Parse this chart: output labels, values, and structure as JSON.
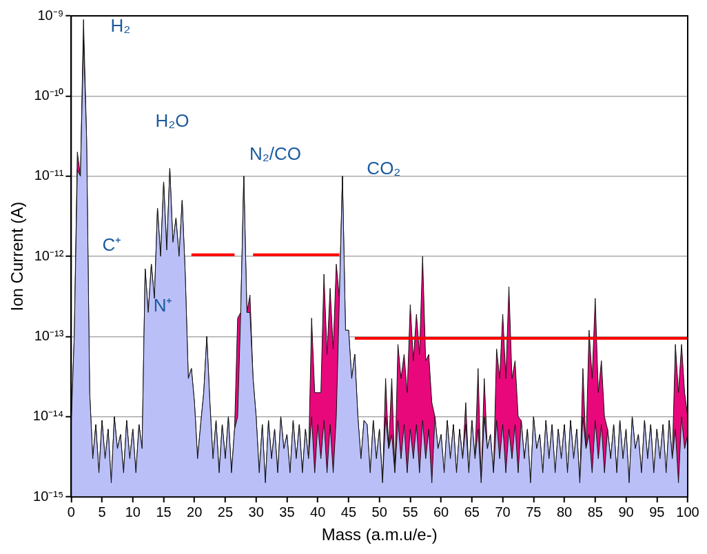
{
  "chart_data": {
    "type": "area",
    "xlabel": "Mass (a.m.u/e-)",
    "ylabel": "Ion Current (A)",
    "log": "y",
    "grid": "y",
    "legend": false,
    "marker": "none",
    "xlim": [
      0,
      100
    ],
    "xticks": [
      0,
      5,
      10,
      15,
      20,
      25,
      30,
      35,
      40,
      45,
      50,
      55,
      60,
      65,
      70,
      75,
      80,
      85,
      90,
      95,
      100
    ],
    "ylim": [
      1e-15,
      1e-09
    ],
    "yticks": [
      {
        "value": 1e-15,
        "label": "10⁻¹⁵"
      },
      {
        "value": 1e-14,
        "label": "10⁻¹⁴"
      },
      {
        "value": 1e-13,
        "label": "10⁻¹³"
      },
      {
        "value": 1e-12,
        "label": "10⁻¹²"
      },
      {
        "value": 1e-11,
        "label": "10⁻¹¹"
      },
      {
        "value": 1e-10,
        "label": "10⁻¹⁰"
      },
      {
        "value": 1e-09,
        "label": "10⁻⁹"
      }
    ],
    "x": [
      0,
      0.5,
      1,
      1.5,
      2,
      2.5,
      3,
      3.5,
      4,
      4.5,
      5,
      5.5,
      6,
      6.5,
      7,
      7.5,
      8,
      8.5,
      9,
      9.5,
      10,
      10.5,
      11,
      11.5,
      12,
      12.5,
      13,
      13.5,
      14,
      14.5,
      15,
      15.5,
      16,
      16.5,
      17,
      17.5,
      18,
      18.5,
      19,
      19.5,
      20,
      20.5,
      21,
      21.5,
      22,
      22.5,
      23,
      23.5,
      24,
      24.5,
      25,
      25.5,
      26,
      26.5,
      27,
      27.5,
      28,
      28.5,
      29,
      29.5,
      30,
      30.5,
      31,
      31.5,
      32,
      32.5,
      33,
      33.5,
      34,
      34.5,
      35,
      35.5,
      36,
      36.5,
      37,
      37.5,
      38,
      38.5,
      39,
      39.5,
      40,
      40.5,
      41,
      41.5,
      42,
      42.5,
      43,
      43.5,
      44,
      44.5,
      45,
      45.5,
      46,
      46.5,
      47,
      47.5,
      48,
      48.5,
      49,
      49.5,
      50,
      50.5,
      51,
      51.5,
      52,
      52.5,
      53,
      53.5,
      54,
      54.5,
      55,
      55.5,
      56,
      56.5,
      57,
      57.5,
      58,
      58.5,
      59,
      59.5,
      60,
      60.5,
      61,
      61.5,
      62,
      62.5,
      63,
      63.5,
      64,
      64.5,
      65,
      65.5,
      66,
      66.5,
      67,
      67.5,
      68,
      68.5,
      69,
      69.5,
      70,
      70.5,
      71,
      71.5,
      72,
      72.5,
      73,
      73.5,
      74,
      74.5,
      75,
      75.5,
      76,
      76.5,
      77,
      77.5,
      78,
      78.5,
      79,
      79.5,
      80,
      80.5,
      81,
      81.5,
      82,
      82.5,
      83,
      83.5,
      84,
      84.5,
      85,
      85.5,
      86,
      86.5,
      87,
      87.5,
      88,
      88.5,
      89,
      89.5,
      90,
      90.5,
      91,
      91.5,
      92,
      92.5,
      93,
      93.5,
      94,
      94.5,
      95,
      95.5,
      96,
      96.5,
      97,
      97.5,
      98,
      98.5,
      99,
      99.5,
      100
    ],
    "series": [
      {
        "type": "area",
        "color": "#e8087c",
        "values": [
          8e-15,
          1e-13,
          2e-11,
          1e-11,
          9e-10,
          3e-11,
          2e-14,
          3e-15,
          8e-15,
          2e-15,
          9e-15,
          3e-15,
          7e-15,
          1.5e-15,
          1e-14,
          4e-15,
          6e-15,
          2e-15,
          9e-15,
          3e-15,
          7e-15,
          2e-15,
          8e-15,
          4e-15,
          7e-13,
          2e-13,
          8e-13,
          3e-13,
          4e-12,
          1e-12,
          8.5e-12,
          1.2e-12,
          1.25e-11,
          1.5e-12,
          3e-12,
          1e-12,
          5e-12,
          6e-13,
          3e-14,
          4e-14,
          1.5e-14,
          3e-15,
          8e-15,
          2e-14,
          1e-13,
          1.5e-14,
          3e-15,
          9e-15,
          2e-15,
          8e-15,
          3e-15,
          1e-14,
          2e-15,
          7e-15,
          1.7e-13,
          2e-13,
          1e-11,
          2e-13,
          3.3e-13,
          3e-14,
          1e-14,
          2e-15,
          8e-15,
          1.5e-15,
          9e-15,
          3e-15,
          7e-15,
          2e-15,
          1e-14,
          4e-15,
          6e-15,
          2e-15,
          9e-15,
          3e-15,
          8e-15,
          2e-15,
          7e-15,
          3e-15,
          1.7e-13,
          2e-14,
          2e-14,
          2e-14,
          6e-13,
          6e-14,
          4e-13,
          7e-14,
          8e-13,
          3e-13,
          1e-11,
          1.2e-13,
          1.2e-13,
          3e-14,
          6e-14,
          1e-14,
          3e-15,
          9e-15,
          8e-15,
          2e-15,
          9e-15,
          3e-15,
          7e-15,
          1.5e-15,
          3e-14,
          4e-15,
          3e-14,
          2e-15,
          8e-14,
          3e-14,
          6e-14,
          2e-14,
          2.5e-13,
          5e-14,
          1.9e-13,
          6e-14,
          1e-12,
          5e-14,
          6e-14,
          1.5e-14,
          1e-14,
          4e-15,
          6e-15,
          2e-15,
          9e-15,
          3e-15,
          8e-15,
          2e-15,
          7e-15,
          3e-15,
          1.5e-14,
          2e-15,
          9e-15,
          3e-15,
          4e-14,
          1.5e-15,
          3e-14,
          4e-15,
          6e-15,
          2e-15,
          7e-14,
          3e-14,
          1.9e-13,
          3e-14,
          4.2e-13,
          3e-14,
          5e-14,
          1e-14,
          9e-15,
          3e-15,
          7e-15,
          1.5e-15,
          1e-14,
          4e-15,
          6e-15,
          2e-15,
          9e-15,
          3e-15,
          8e-15,
          2e-15,
          7e-15,
          3e-15,
          8e-15,
          2e-15,
          9e-15,
          3e-15,
          7e-15,
          1.5e-15,
          4e-14,
          4e-15,
          1.2e-13,
          3e-14,
          3e-13,
          2e-14,
          5e-14,
          1e-14,
          7e-15,
          3e-15,
          8e-15,
          2e-15,
          9e-15,
          3e-15,
          7e-15,
          1.5e-15,
          1e-14,
          4e-15,
          6e-15,
          2e-15,
          9e-15,
          3e-15,
          8e-15,
          2e-15,
          7e-15,
          3e-15,
          8e-15,
          2e-15,
          9e-15,
          3e-15,
          8e-14,
          2e-14,
          8e-14,
          2e-14,
          1e-14
        ]
      },
      {
        "type": "area",
        "color": "#bac0f7",
        "values": [
          8e-15,
          1e-13,
          1.2e-11,
          1e-11,
          5e-10,
          3e-11,
          2e-14,
          3e-15,
          8e-15,
          2e-15,
          9e-15,
          3e-15,
          7e-15,
          1.5e-15,
          1e-14,
          4e-15,
          6e-15,
          2e-15,
          9e-15,
          3e-15,
          7e-15,
          2e-15,
          8e-15,
          4e-15,
          7e-13,
          2e-13,
          8e-13,
          3e-13,
          4e-12,
          1e-12,
          8.5e-12,
          1.2e-12,
          1.25e-11,
          1.5e-12,
          3e-12,
          1e-12,
          5e-12,
          6e-13,
          3e-14,
          4e-14,
          1.5e-14,
          3e-15,
          8e-15,
          2e-14,
          1e-13,
          1.5e-14,
          3e-15,
          9e-15,
          2e-15,
          8e-15,
          3e-15,
          1e-14,
          2e-15,
          7e-15,
          1e-14,
          2e-13,
          1e-11,
          2e-13,
          2e-13,
          3e-14,
          1e-14,
          2e-15,
          8e-15,
          1.5e-15,
          9e-15,
          3e-15,
          7e-15,
          2e-15,
          1e-14,
          4e-15,
          6e-15,
          2e-15,
          9e-15,
          3e-15,
          8e-15,
          2e-15,
          7e-15,
          3e-15,
          1e-14,
          2e-15,
          8e-15,
          3e-15,
          9e-15,
          2e-15,
          8e-15,
          2e-15,
          1e-14,
          3e-13,
          1e-11,
          1.2e-13,
          1.2e-13,
          3e-14,
          6e-14,
          1e-14,
          3e-15,
          9e-15,
          8e-15,
          2e-15,
          9e-15,
          3e-15,
          7e-15,
          1.5e-15,
          1e-14,
          4e-15,
          6e-15,
          2e-15,
          9e-15,
          3e-15,
          8e-15,
          2e-15,
          7e-15,
          3e-15,
          8e-15,
          2e-15,
          9e-15,
          3e-15,
          7e-15,
          1.5e-15,
          1e-14,
          4e-15,
          6e-15,
          2e-15,
          9e-15,
          3e-15,
          8e-15,
          2e-15,
          7e-15,
          3e-15,
          8e-15,
          2e-15,
          9e-15,
          3e-15,
          7e-15,
          1.5e-15,
          1e-14,
          4e-15,
          6e-15,
          2e-15,
          9e-15,
          3e-15,
          8e-15,
          2e-15,
          7e-15,
          3e-15,
          8e-15,
          2e-15,
          9e-15,
          3e-15,
          7e-15,
          1.5e-15,
          1e-14,
          4e-15,
          6e-15,
          2e-15,
          9e-15,
          3e-15,
          8e-15,
          2e-15,
          7e-15,
          3e-15,
          8e-15,
          2e-15,
          9e-15,
          3e-15,
          7e-15,
          1.5e-15,
          1e-14,
          4e-15,
          6e-15,
          2e-15,
          9e-15,
          3e-15,
          8e-15,
          2e-15,
          7e-15,
          3e-15,
          8e-15,
          2e-15,
          9e-15,
          3e-15,
          7e-15,
          1.5e-15,
          1e-14,
          4e-15,
          6e-15,
          2e-15,
          9e-15,
          3e-15,
          8e-15,
          2e-15,
          7e-15,
          3e-15,
          8e-15,
          2e-15,
          9e-15,
          3e-15,
          7e-15,
          1.5e-15,
          1e-14,
          4e-15,
          6e-15
        ]
      },
      {
        "type": "line",
        "color": "#ff0000",
        "x": [
          19.5,
          26.5,
          27,
          29.5,
          43.5
        ],
        "values": [
          1.05e-12,
          1.05e-12,
          null,
          1.05e-12,
          1.05e-12
        ]
      },
      {
        "type": "line",
        "color": "#ff0000",
        "x": [
          46,
          100
        ],
        "values": [
          9.5e-14,
          9.5e-14
        ]
      }
    ],
    "annotations": [
      "H₂",
      "H₂O",
      "N₂/CO",
      "CO₂",
      "C⁺",
      "N⁺"
    ]
  }
}
